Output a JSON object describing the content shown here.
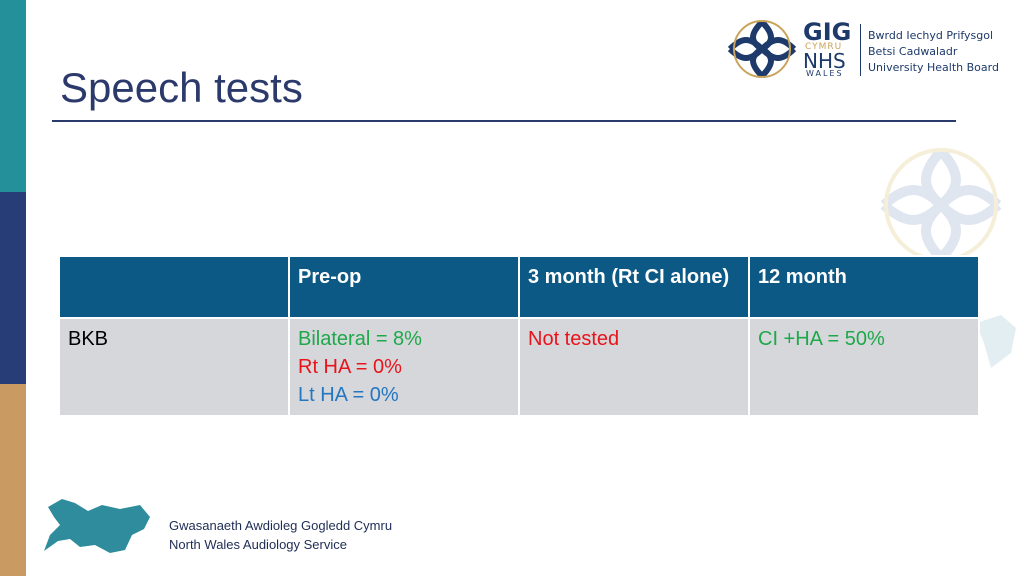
{
  "header": {
    "title": "Speech tests"
  },
  "logo": {
    "gig": "GIG",
    "cymru": "CYMRU",
    "nhs": "NHS",
    "wales": "WALES",
    "board_lines": [
      "Bwrdd Iechyd Prifysgol",
      "Betsi Cadwaladr",
      "University Health Board"
    ]
  },
  "table": {
    "columns": [
      "Pre-op",
      "3 month (Rt CI alone)",
      "12 month"
    ],
    "rows": [
      {
        "label": "BKB",
        "cells": [
          [
            "Bilateral = 8%",
            "Rt HA = 0%",
            "Lt HA = 0%"
          ],
          [
            "Not tested"
          ],
          [
            "CI +HA = 50%"
          ]
        ]
      }
    ]
  },
  "footer": [
    "Gwasanaeth Awdioleg Gogledd Cymru",
    "North Wales Audiology Service"
  ]
}
